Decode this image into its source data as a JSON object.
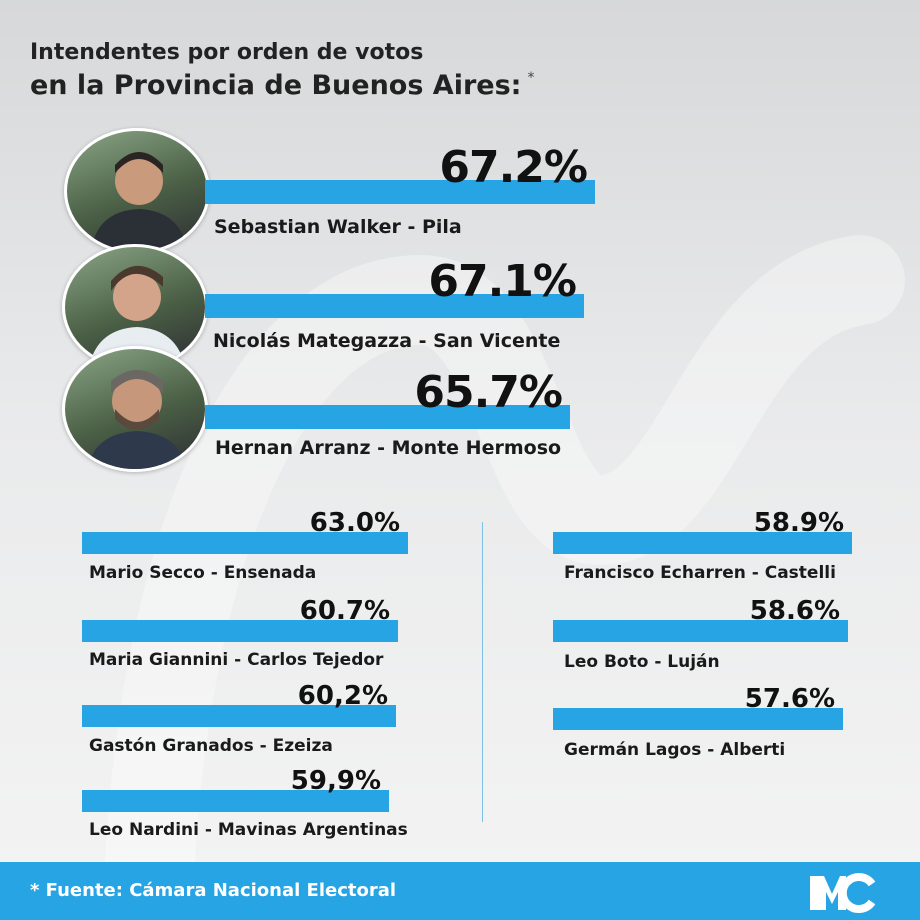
{
  "title_line1": "Intendentes por orden de votos",
  "title_line2": "en la Provincia de Buenos Aires:",
  "title_asterisk": "*",
  "footer": {
    "source": "* Fuente: Cámara Nacional Electoral"
  },
  "colors": {
    "bar": "#27a4e3",
    "footer": "#27a4e3",
    "text": "#111111"
  },
  "chart_data": {
    "type": "bar",
    "categories": [
      "Sebastian Walker - Pila",
      "Nicolás Mategazza - San Vicente",
      "Hernan Arranz - Monte Hermoso",
      "Mario Secco - Ensenada",
      "Maria Giannini - Carlos Tejedor",
      "Gastón Granados - Ezeiza",
      "Leo Nardini - Mavinas Argentinas",
      "Francisco Echarren - Castelli",
      "Leo Boto - Luján",
      "Germán Lagos - Alberti"
    ],
    "values": [
      67.2,
      67.1,
      65.7,
      63.0,
      60.7,
      60.2,
      59.9,
      58.9,
      58.6,
      57.6
    ],
    "value_labels": [
      "67.2%",
      "67.1%",
      "65.7%",
      "63.0%",
      "60.7%",
      "60,2%",
      "59,9%",
      "58.9%",
      "58.6%",
      "57.6%"
    ],
    "title": "Intendentes por orden de votos en la Provincia de Buenos Aires:"
  }
}
